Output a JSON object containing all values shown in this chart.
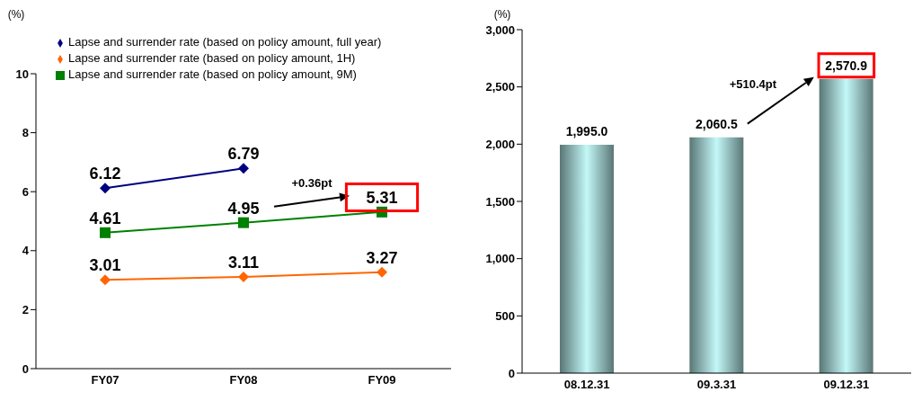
{
  "chart_data": [
    {
      "type": "line",
      "ylabel": "(%)",
      "categories": [
        "FY07",
        "FY08",
        "FY09"
      ],
      "series": [
        {
          "name": "Lapse and surrender rate (based on policy amount, full year)",
          "color": "#000080",
          "marker": "diamond",
          "values": [
            6.12,
            6.79,
            null
          ]
        },
        {
          "name": "Lapse and surrender rate (based on policy amount, 1H)",
          "color": "#ff6600",
          "marker": "diamond",
          "values": [
            3.01,
            3.11,
            3.27
          ]
        },
        {
          "name": "Lapse and surrender rate (based on policy amount, 9M)",
          "color": "#008000",
          "marker": "square",
          "values": [
            4.61,
            4.95,
            5.31
          ]
        }
      ],
      "ylim": [
        0,
        10
      ],
      "yticks": [
        0,
        2,
        4,
        6,
        8,
        10
      ],
      "legend": "top left",
      "data_labels": true,
      "annotations": [
        "+0.36pt"
      ]
    },
    {
      "type": "bar",
      "ylabel": "(%)",
      "categories": [
        "08.12.31",
        "09.3.31",
        "09.12.31"
      ],
      "values": [
        1995.0,
        2060.5,
        2570.9
      ],
      "value_labels": [
        "1,995.0",
        "2,060.5",
        "2,570.9"
      ],
      "color": "#c4f8f8",
      "ylim": [
        0,
        3000
      ],
      "yticks": [
        {
          "value": 0,
          "label": "0"
        },
        {
          "value": 500,
          "label": "500"
        },
        {
          "value": 1000,
          "label": "1,000"
        },
        {
          "value": 1500,
          "label": "1,500"
        },
        {
          "value": 2000,
          "label": "2,000"
        },
        {
          "value": 2500,
          "label": "2,500"
        },
        {
          "value": 3000,
          "label": "3,000"
        }
      ],
      "annotations": [
        "+510.4pt"
      ]
    }
  ]
}
